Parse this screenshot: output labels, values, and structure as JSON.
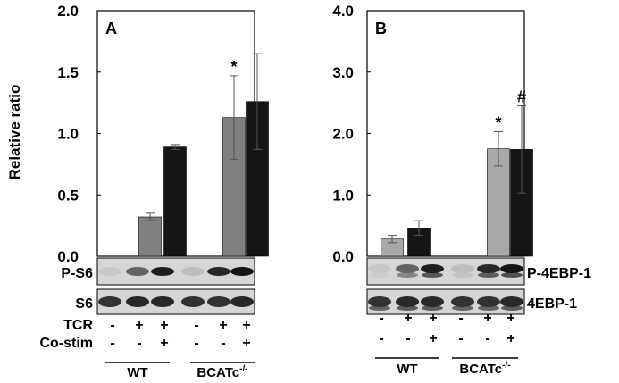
{
  "chart_data": [
    {
      "type": "bar",
      "panel_label": "A",
      "ylabel": "Relative ratio",
      "ylim": [
        0,
        2.0
      ],
      "yticks": [
        "0.0",
        "0.5",
        "1.0",
        "1.5",
        "2.0"
      ],
      "groups": [
        {
          "name": "WT",
          "superscript": ""
        },
        {
          "name": "BCATc",
          "superscript": "-/-"
        }
      ],
      "bars": [
        {
          "group": 0,
          "condition": 1,
          "value": 0.32,
          "error": 0.03,
          "color": "#808080",
          "mark": ""
        },
        {
          "group": 0,
          "condition": 2,
          "value": 0.89,
          "error": 0.02,
          "color": "#151515",
          "mark": ""
        },
        {
          "group": 1,
          "condition": 1,
          "value": 1.13,
          "error": 0.34,
          "color": "#808080",
          "mark": "*"
        },
        {
          "group": 1,
          "condition": 2,
          "value": 1.26,
          "error": 0.39,
          "color": "#151515",
          "mark": ""
        }
      ],
      "blots": [
        {
          "label": "P-S6"
        },
        {
          "label": "S6"
        }
      ]
    },
    {
      "type": "bar",
      "panel_label": "B",
      "ylabel": "",
      "ylim": [
        0,
        4.0
      ],
      "yticks": [
        "0.0",
        "1.0",
        "2.0",
        "3.0",
        "4.0"
      ],
      "groups": [
        {
          "name": "WT",
          "superscript": ""
        },
        {
          "name": "BCATc",
          "superscript": "-/-"
        }
      ],
      "bars": [
        {
          "group": 0,
          "condition": 0,
          "value": 0.28,
          "error": 0.06,
          "color": "#a9a9a9",
          "mark": ""
        },
        {
          "group": 0,
          "condition": 1,
          "value": 0.46,
          "error": 0.12,
          "color": "#151515",
          "mark": ""
        },
        {
          "group": 1,
          "condition": 1,
          "value": 1.75,
          "error": 0.28,
          "color": "#a9a9a9",
          "mark": "*"
        },
        {
          "group": 1,
          "condition": 2,
          "value": 1.74,
          "error": 0.71,
          "color": "#151515",
          "mark": "#"
        }
      ],
      "blots": [
        {
          "label": "P-4EBP-1"
        },
        {
          "label": "4EBP-1"
        }
      ]
    }
  ],
  "conditions": {
    "tcr_label": "TCR",
    "costim_label": "Co-stim",
    "tcr_signs": [
      "-",
      "+",
      "+"
    ],
    "costim_signs": [
      "-",
      "-",
      "+"
    ]
  }
}
